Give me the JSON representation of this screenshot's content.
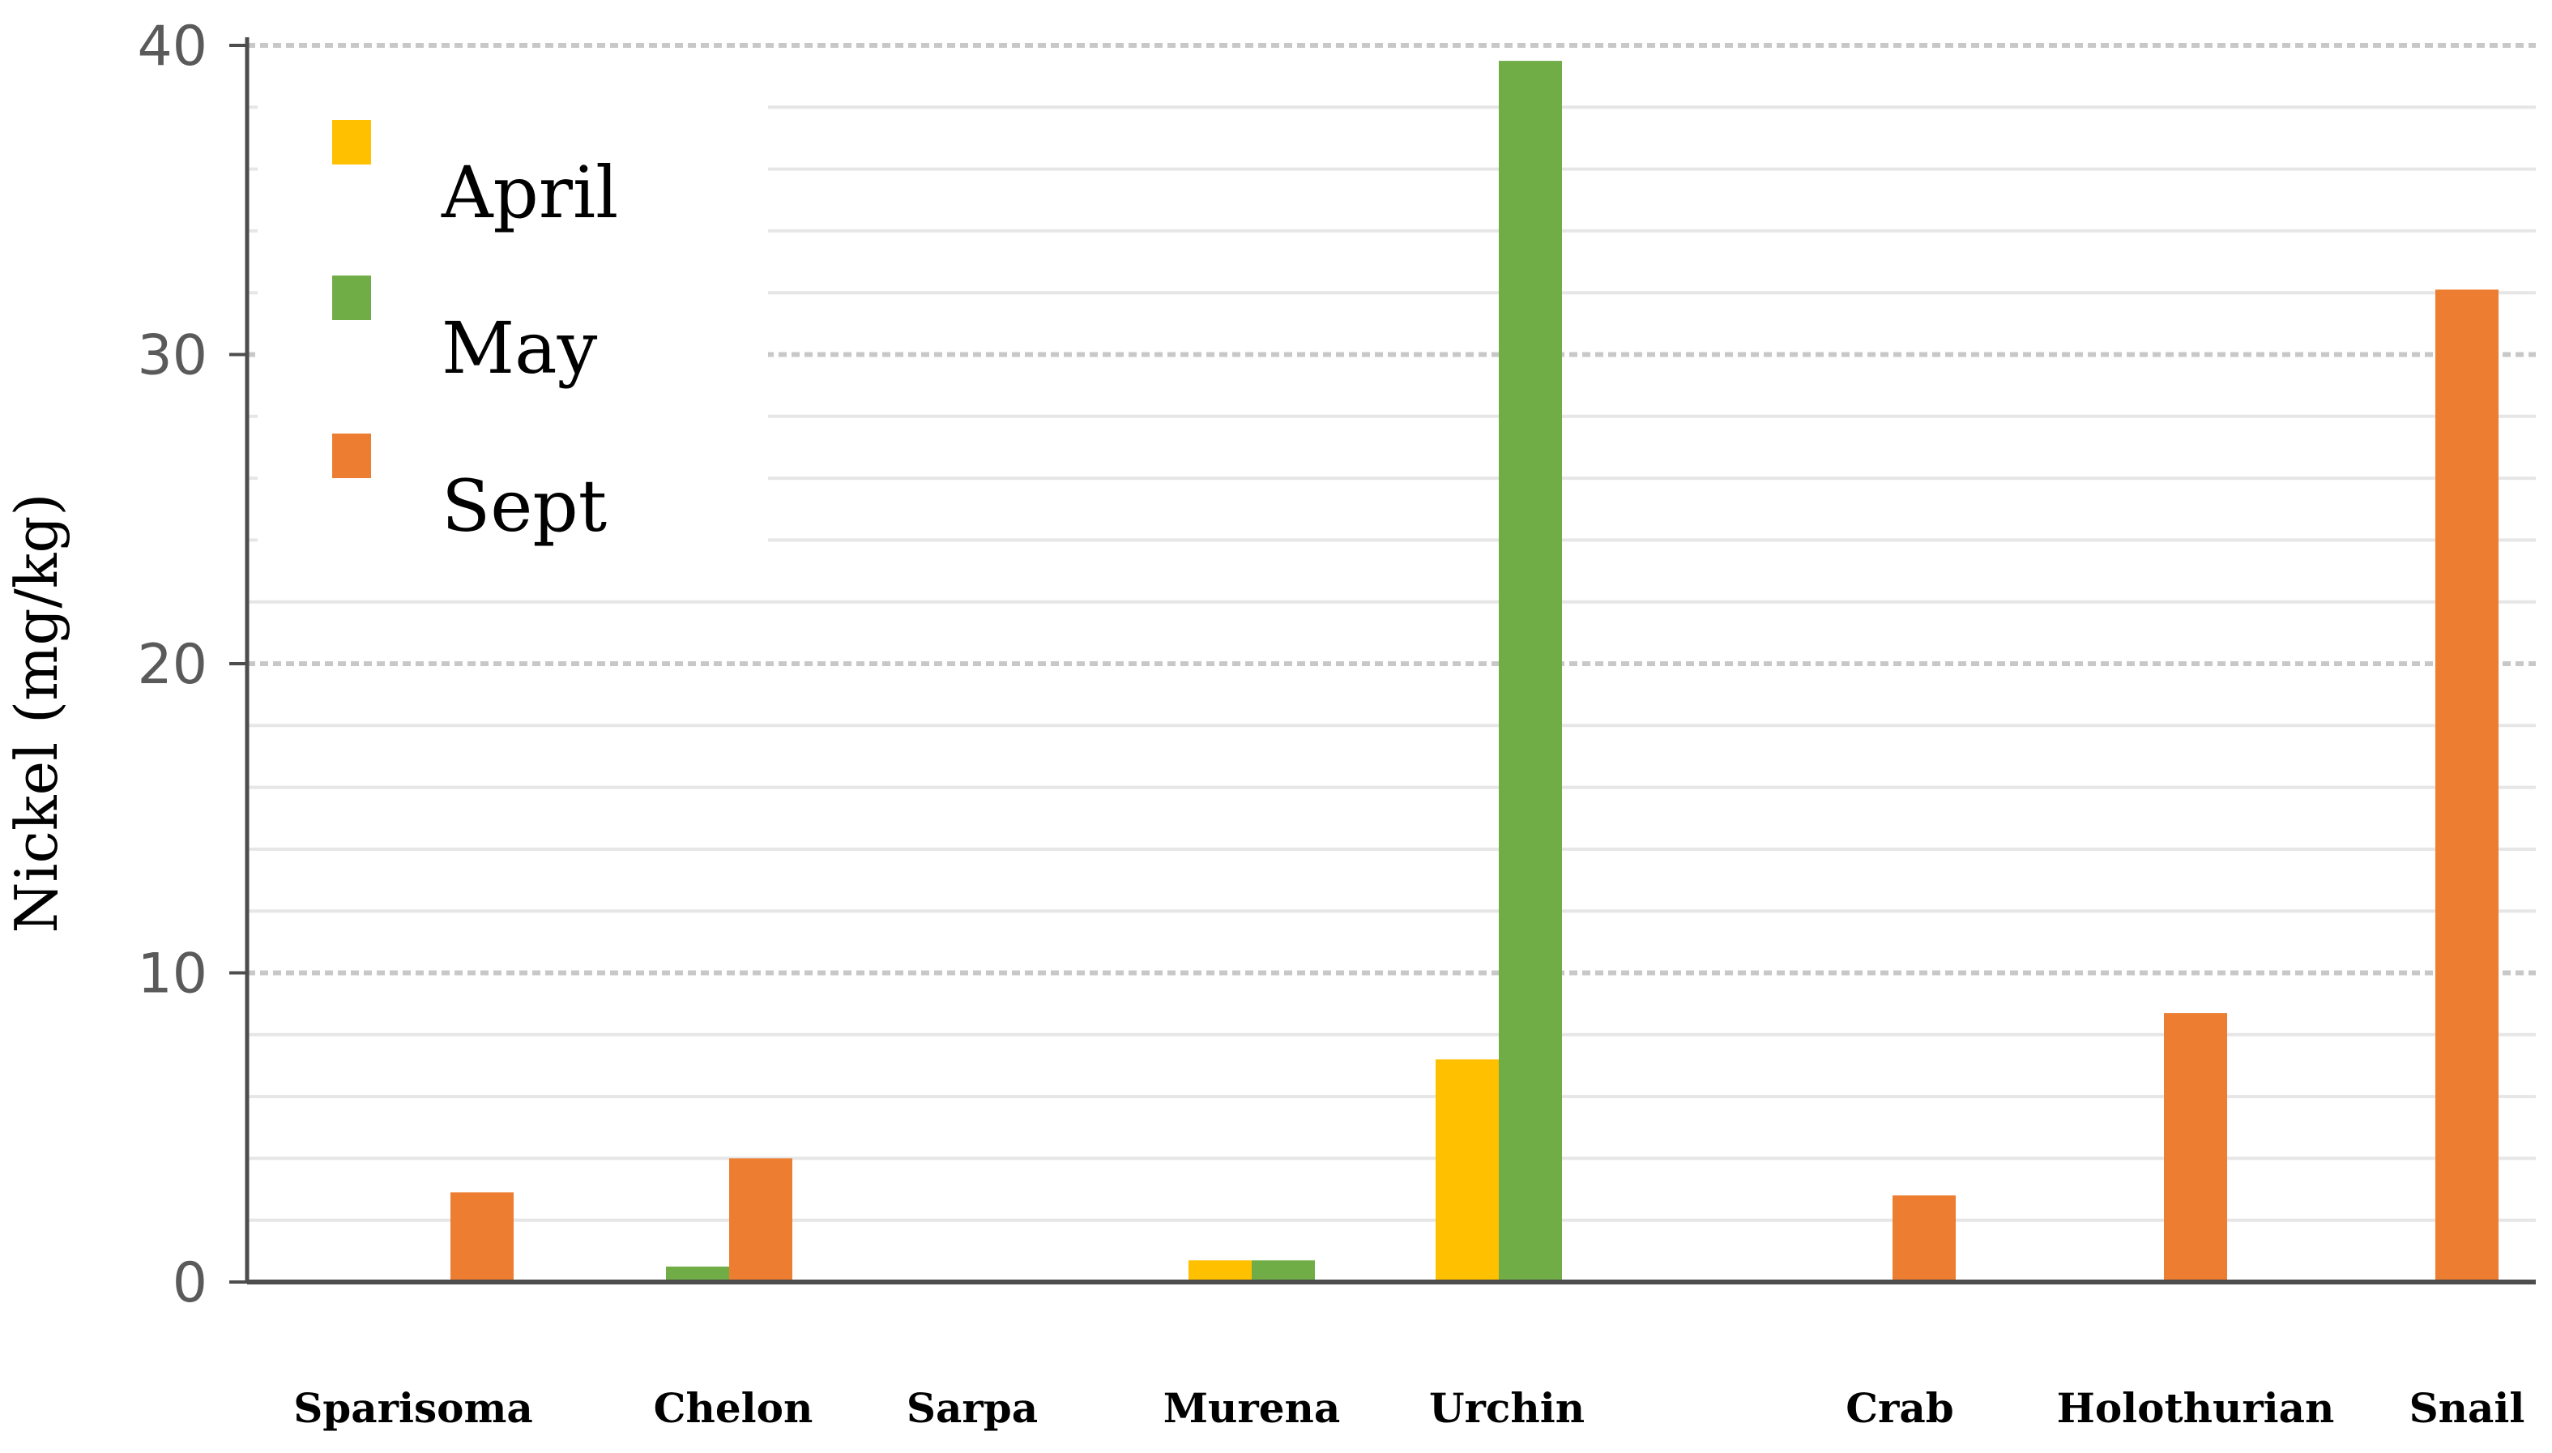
{
  "chart_data": {
    "type": "bar",
    "title": "",
    "xlabel": "",
    "ylabel": "Nickel (mg/kg)",
    "ylim": [
      0,
      40
    ],
    "yticks": [
      0,
      10,
      20,
      30,
      40
    ],
    "grid": true,
    "legend_position": "top-left",
    "categories": [
      "Sparisoma",
      "Chelon",
      "Sarpa",
      "Murena",
      "Urchin",
      "Crab",
      "Holothurian",
      "Snail"
    ],
    "series": [
      {
        "name": "April",
        "color": "#FFC000",
        "values": [
          0,
          0,
          0,
          0.7,
          7.2,
          0,
          0,
          0
        ]
      },
      {
        "name": "May",
        "color": "#70AD47",
        "values": [
          0,
          0.5,
          0,
          0.7,
          39.5,
          0,
          0,
          0
        ]
      },
      {
        "name": "Sept",
        "color": "#ED7D31",
        "values": [
          2.9,
          4.0,
          0,
          0,
          0,
          2.8,
          8.7,
          32.1
        ]
      }
    ]
  }
}
